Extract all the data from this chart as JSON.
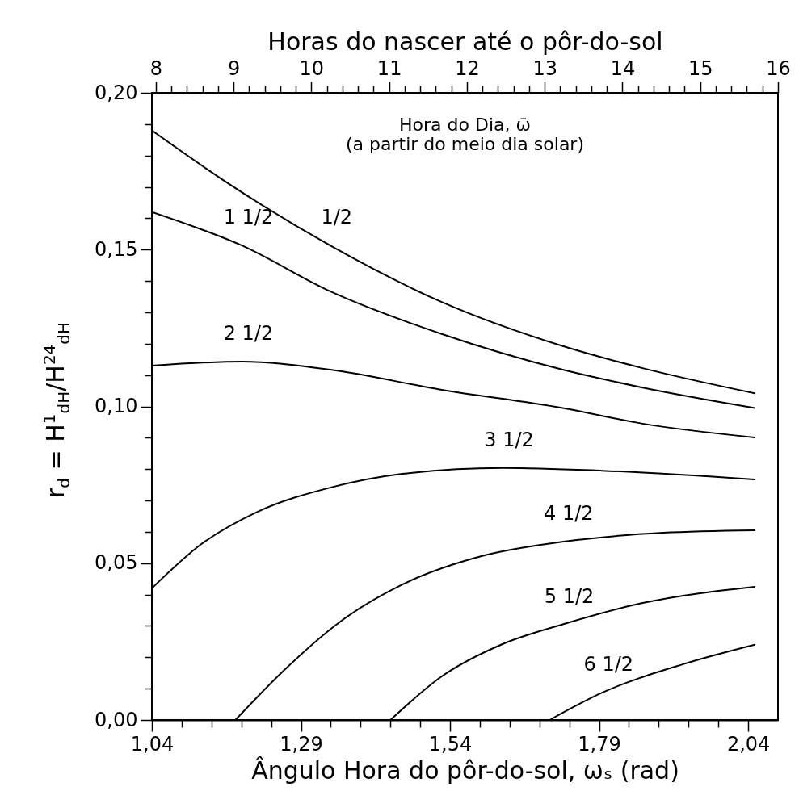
{
  "chart_data": {
    "type": "line",
    "xlabel": "Ângulo Hora do pôr-do-sol, ωₛ (rad)",
    "ylabel": "r$_{d}$  =  H$^{1}$$_{dH}$/H$^{24}$$_{dH}$",
    "x2label": "Horas do nascer até o pôr-do-sol",
    "xlim": [
      1.04,
      2.09
    ],
    "ylim": [
      0,
      0.2
    ],
    "x2lim": [
      7.95,
      16
    ],
    "xticks": [
      {
        "value": 1.04,
        "label": "1,04"
      },
      {
        "value": 1.09,
        "label": null
      },
      {
        "value": 1.14,
        "label": null
      },
      {
        "value": 1.19,
        "label": null
      },
      {
        "value": 1.24,
        "label": null
      },
      {
        "value": 1.29,
        "label": "1,29"
      },
      {
        "value": 1.34,
        "label": null
      },
      {
        "value": 1.39,
        "label": null
      },
      {
        "value": 1.44,
        "label": null
      },
      {
        "value": 1.49,
        "label": null
      },
      {
        "value": 1.54,
        "label": "1,54"
      },
      {
        "value": 1.59,
        "label": null
      },
      {
        "value": 1.64,
        "label": null
      },
      {
        "value": 1.69,
        "label": null
      },
      {
        "value": 1.74,
        "label": null
      },
      {
        "value": 1.79,
        "label": "1,79"
      },
      {
        "value": 1.84,
        "label": null
      },
      {
        "value": 1.89,
        "label": null
      },
      {
        "value": 1.94,
        "label": null
      },
      {
        "value": 1.99,
        "label": null
      },
      {
        "value": 2.04,
        "label": "2,04"
      }
    ],
    "yticks": [
      {
        "value": 0,
        "label": "0,00"
      },
      {
        "value": 0.01,
        "label": null
      },
      {
        "value": 0.02,
        "label": null
      },
      {
        "value": 0.03,
        "label": null
      },
      {
        "value": 0.04,
        "label": null
      },
      {
        "value": 0.05,
        "label": "0,05"
      },
      {
        "value": 0.06,
        "label": null
      },
      {
        "value": 0.07,
        "label": null
      },
      {
        "value": 0.08,
        "label": null
      },
      {
        "value": 0.09,
        "label": null
      },
      {
        "value": 0.1,
        "label": "0,10"
      },
      {
        "value": 0.11,
        "label": null
      },
      {
        "value": 0.12,
        "label": null
      },
      {
        "value": 0.13,
        "label": null
      },
      {
        "value": 0.14,
        "label": null
      },
      {
        "value": 0.15,
        "label": "0,15"
      },
      {
        "value": 0.16,
        "label": null
      },
      {
        "value": 0.17,
        "label": null
      },
      {
        "value": 0.18,
        "label": null
      },
      {
        "value": 0.19,
        "label": null
      },
      {
        "value": 0.2,
        "label": "0,20"
      }
    ],
    "x2ticks": [
      8,
      {
        "value": 8.2,
        "label": null
      },
      {
        "value": 8.4,
        "label": null
      },
      {
        "value": 8.6,
        "label": null
      },
      {
        "value": 8.8,
        "label": null
      },
      9,
      {
        "value": 9.2,
        "label": null
      },
      {
        "value": 9.4,
        "label": null
      },
      {
        "value": 9.6,
        "label": null
      },
      {
        "value": 9.8,
        "label": null
      },
      10,
      {
        "value": 10.2,
        "label": null
      },
      {
        "value": 10.4,
        "label": null
      },
      {
        "value": 10.6,
        "label": null
      },
      {
        "value": 10.8,
        "label": null
      },
      11,
      {
        "value": 11.2,
        "label": null
      },
      {
        "value": 11.4,
        "label": null
      },
      {
        "value": 11.6,
        "label": null
      },
      {
        "value": 11.8,
        "label": null
      },
      12,
      {
        "value": 12.2,
        "label": null
      },
      {
        "value": 12.4,
        "label": null
      },
      {
        "value": 12.6,
        "label": null
      },
      {
        "value": 12.8,
        "label": null
      },
      13,
      {
        "value": 13.2,
        "label": null
      },
      {
        "value": 13.4,
        "label": null
      },
      {
        "value": 13.6,
        "label": null
      },
      {
        "value": 13.8,
        "label": null
      },
      14,
      {
        "value": 14.2,
        "label": null
      },
      {
        "value": 14.4,
        "label": null
      },
      {
        "value": 14.6,
        "label": null
      },
      {
        "value": 14.8,
        "label": null
      },
      15,
      {
        "value": 15.2,
        "label": null
      },
      {
        "value": 15.4,
        "label": null
      },
      {
        "value": 15.6,
        "label": null
      },
      {
        "value": 15.8,
        "label": null
      },
      16
    ],
    "series": [
      {
        "color": "#000000",
        "x": [
          1.04,
          1.157,
          1.339,
          1.526,
          1.728,
          1.863,
          2.051
        ],
        "values": [
          0.188,
          0.1725,
          0.1513,
          0.1333,
          0.1193,
          0.1122,
          0.1042
        ]
      },
      {
        "color": "#000000",
        "x": [
          1.04,
          1.191,
          1.339,
          1.526,
          1.729,
          1.863,
          2.051
        ],
        "values": [
          0.162,
          0.1513,
          0.1367,
          0.1231,
          0.1117,
          0.106,
          0.0995
        ]
      },
      {
        "color": "#000000",
        "x": [
          1.04,
          1.191,
          1.339,
          1.526,
          1.729,
          1.863,
          2.051
        ],
        "values": [
          0.113,
          0.1143,
          0.1117,
          0.1053,
          0.0995,
          0.0945,
          0.0901
        ]
      },
      {
        "color": "#000000",
        "x": [
          1.04,
          1.123,
          1.217,
          1.339,
          1.46,
          1.628,
          1.795,
          2.051
        ],
        "values": [
          0.042,
          0.0561,
          0.0664,
          0.0741,
          0.0785,
          0.0804,
          0.0795,
          0.0767
        ]
      },
      {
        "color": "#000000",
        "x": [
          1.18,
          1.258,
          1.359,
          1.46,
          1.594,
          1.728,
          1.897,
          2.051
        ],
        "values": [
          0,
          0.0152,
          0.0318,
          0.0432,
          0.0523,
          0.0568,
          0.0597,
          0.0605
        ]
      },
      {
        "color": "#000000",
        "x": [
          1.44,
          1.526,
          1.628,
          1.729,
          1.863,
          2.051
        ],
        "values": [
          0,
          0.0139,
          0.0242,
          0.0305,
          0.0373,
          0.0425
        ]
      },
      {
        "color": "#000000",
        "x": [
          1.707,
          1.795,
          1.931,
          2.051
        ],
        "values": [
          0,
          0.0087,
          0.0178,
          0.024
        ]
      }
    ],
    "annotations": [
      "Hora do Dia, ω̄\n(a partir do meio dia solar)",
      {
        "text": "1/2",
        "x": 1.339,
        "y": 0.1513
      },
      {
        "text": "1 1/2",
        "x": 1.191,
        "y": 0.1513
      },
      {
        "text": "2 1/2",
        "x": 1.191,
        "y": 0.1143
      },
      {
        "text": "3 1/2",
        "x": 1.628,
        "y": 0.0804
      },
      {
        "text": "4 1/2",
        "x": 1.728,
        "y": 0.0568
      },
      {
        "text": "5 1/2",
        "x": 1.729,
        "y": 0.0305
      },
      {
        "text": "6 1/2",
        "x": 1.795,
        "y": 0.0087
      }
    ]
  }
}
